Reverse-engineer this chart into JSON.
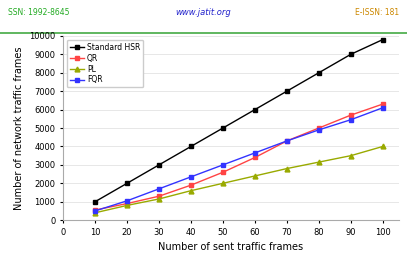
{
  "x": [
    10,
    20,
    30,
    40,
    50,
    60,
    70,
    80,
    90,
    100
  ],
  "standard_hsr": [
    1000,
    2000,
    3000,
    4000,
    5000,
    6000,
    7000,
    8000,
    9000,
    9800
  ],
  "qr": [
    550,
    900,
    1300,
    1900,
    2600,
    3400,
    4300,
    5000,
    5700,
    6300
  ],
  "pl": [
    400,
    800,
    1150,
    1600,
    2000,
    2400,
    2800,
    3150,
    3500,
    4000
  ],
  "fqr": [
    500,
    1050,
    1700,
    2350,
    3000,
    3650,
    4300,
    4900,
    5450,
    6100
  ],
  "xlabel": "Number of sent traffic frames",
  "ylabel": "Number of network traffic frames",
  "ylim": [
    0,
    10000
  ],
  "xlim": [
    0,
    105
  ],
  "yticks": [
    0,
    1000,
    2000,
    3000,
    4000,
    5000,
    6000,
    7000,
    8000,
    9000,
    10000
  ],
  "xticks": [
    0,
    10,
    20,
    30,
    40,
    50,
    60,
    70,
    80,
    90,
    100
  ],
  "legend_labels": [
    "Standard HSR",
    "QR",
    "PL",
    "FQR"
  ],
  "colors": [
    "black",
    "#ff4444",
    "#99aa00",
    "#3333ff"
  ],
  "markers": [
    "s",
    "s",
    "^",
    "s"
  ],
  "header_text": "www.jatit.org",
  "issn_left": "SSN: 1992-8645",
  "issn_right": "E-ISSN: 181",
  "header_line_color": "#44aa44",
  "bg_color": "#ffffff"
}
